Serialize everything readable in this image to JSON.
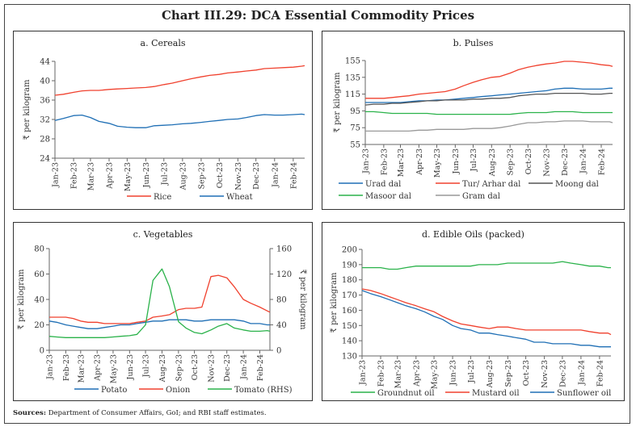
{
  "title": "Chart III.29: DCA Essential Commodity Prices",
  "sources_label": "Sources:",
  "sources_text": "Department of Consumer Affairs, GoI; and RBI staff estimates.",
  "chart_data": [
    {
      "type": "line",
      "title": "a. Cereals",
      "ylabel": "₹ per kilogram",
      "ylim": [
        24,
        44
      ],
      "yticks": [
        24,
        28,
        32,
        36,
        40,
        44
      ],
      "xlim": [
        "2023-01-01",
        "2024-02-20"
      ],
      "xticks": [
        "Jan-23",
        "Feb-23",
        "Mar-23",
        "Apr-23",
        "May-23",
        "Jun-23",
        "Jul-23",
        "Aug-23",
        "Sep-23",
        "Oct-23",
        "Nov-23",
        "Dec-23",
        "Jan-24",
        "Feb-24"
      ],
      "grid": false,
      "legend": "bottom",
      "x": [
        "2023-01-01",
        "2023-01-15",
        "2023-02-01",
        "2023-02-15",
        "2023-03-01",
        "2023-03-15",
        "2023-04-01",
        "2023-04-15",
        "2023-05-01",
        "2023-05-15",
        "2023-06-01",
        "2023-06-15",
        "2023-07-01",
        "2023-07-15",
        "2023-08-01",
        "2023-08-15",
        "2023-09-01",
        "2023-09-15",
        "2023-10-01",
        "2023-10-15",
        "2023-11-01",
        "2023-11-15",
        "2023-12-01",
        "2023-12-15",
        "2024-01-01",
        "2024-01-15",
        "2024-02-01",
        "2024-02-15",
        "2024-02-20"
      ],
      "series": [
        {
          "name": "Rice",
          "color": "#f0412e",
          "values": [
            37,
            37.2,
            37.6,
            37.9,
            38,
            38,
            38.2,
            38.3,
            38.4,
            38.5,
            38.6,
            38.8,
            39.2,
            39.5,
            40,
            40.4,
            40.8,
            41.1,
            41.3,
            41.6,
            41.8,
            42,
            42.2,
            42.5,
            42.6,
            42.7,
            42.8,
            43,
            43.1
          ]
        },
        {
          "name": "Wheat",
          "color": "#1f6fb5",
          "values": [
            31.8,
            32.2,
            32.8,
            32.9,
            32.4,
            31.6,
            31.2,
            30.6,
            30.4,
            30.3,
            30.3,
            30.7,
            30.8,
            30.9,
            31.1,
            31.2,
            31.4,
            31.6,
            31.8,
            32,
            32.1,
            32.4,
            32.8,
            33,
            32.9,
            32.9,
            33,
            33.1,
            33
          ]
        }
      ]
    },
    {
      "type": "line",
      "title": "b. Pulses",
      "ylabel": "₹ per kilogram",
      "ylim": [
        55,
        155
      ],
      "yticks": [
        55,
        75,
        95,
        115,
        135,
        155
      ],
      "xlim": [
        "2023-01-01",
        "2024-02-20"
      ],
      "xticks": [
        "Jan-23",
        "Feb-23",
        "Mar-23",
        "Apr-23",
        "May-23",
        "Jun-23",
        "Jul-23",
        "Aug-23",
        "Sep-23",
        "Oct-23",
        "Nov-23",
        "Dec-23",
        "Jan-24",
        "Feb-24"
      ],
      "grid": false,
      "legend": "bottom",
      "x": [
        "2023-01-01",
        "2023-01-15",
        "2023-02-01",
        "2023-02-15",
        "2023-03-01",
        "2023-03-15",
        "2023-04-01",
        "2023-04-15",
        "2023-05-01",
        "2023-05-15",
        "2023-06-01",
        "2023-06-15",
        "2023-07-01",
        "2023-07-15",
        "2023-08-01",
        "2023-08-15",
        "2023-09-01",
        "2023-09-15",
        "2023-10-01",
        "2023-10-15",
        "2023-11-01",
        "2023-11-15",
        "2023-12-01",
        "2023-12-15",
        "2024-01-01",
        "2024-01-15",
        "2024-02-01",
        "2024-02-15",
        "2024-02-20"
      ],
      "series": [
        {
          "name": "Urad dal",
          "color": "#1f6fb5",
          "values": [
            105,
            105,
            105,
            105,
            105,
            106,
            107,
            107,
            108,
            108,
            109,
            110,
            111,
            112,
            113,
            114,
            115,
            116,
            117,
            118,
            119,
            121,
            122,
            122,
            121,
            121,
            121,
            122,
            122
          ]
        },
        {
          "name": "Tur/ Arhar dal",
          "color": "#f0412e",
          "values": [
            110,
            110,
            110,
            111,
            112,
            113,
            115,
            116,
            117,
            118,
            121,
            125,
            129,
            132,
            135,
            136,
            140,
            144,
            147,
            149,
            151,
            152,
            154,
            154,
            153,
            152,
            150,
            149,
            148
          ]
        },
        {
          "name": "Moong dal",
          "color": "#555555",
          "values": [
            102,
            103,
            103,
            104,
            104,
            105,
            106,
            107,
            107,
            108,
            108,
            108,
            109,
            109,
            110,
            110,
            111,
            113,
            114,
            115,
            115,
            116,
            116,
            116,
            116,
            115,
            115,
            116,
            116
          ]
        },
        {
          "name": "Masoor dal",
          "color": "#2ab24a",
          "values": [
            94,
            94,
            93,
            92,
            92,
            92,
            92,
            92,
            91,
            91,
            91,
            91,
            91,
            91,
            91,
            91,
            91,
            92,
            93,
            93,
            93,
            94,
            94,
            94,
            93,
            93,
            93,
            93,
            93
          ]
        },
        {
          "name": "Gram dal",
          "color": "#999999",
          "values": [
            71,
            71,
            71,
            71,
            71,
            71,
            72,
            72,
            73,
            73,
            73,
            73,
            74,
            74,
            74,
            75,
            77,
            79,
            81,
            81,
            82,
            82,
            83,
            83,
            83,
            82,
            82,
            82,
            81
          ]
        }
      ]
    },
    {
      "type": "line",
      "title": "c. Vegetables",
      "ylabel": "₹ per kilogram",
      "ylabel_right": "₹ per kilogram",
      "ylim": [
        0,
        80
      ],
      "yticks": [
        0,
        20,
        40,
        60,
        80
      ],
      "ylim_right": [
        0,
        160
      ],
      "yticks_right": [
        0,
        40,
        80,
        120,
        160
      ],
      "xlim": [
        "2023-01-01",
        "2024-02-20"
      ],
      "xticks": [
        "Jan-23",
        "Feb-23",
        "Mar-23",
        "Apr-23",
        "May-23",
        "Jun-23",
        "Jul-23",
        "Aug-23",
        "Sep-23",
        "Oct-23",
        "Nov-23",
        "Dec-23",
        "Jan-24",
        "Feb-24"
      ],
      "grid": false,
      "legend": "bottom",
      "x": [
        "2023-01-01",
        "2023-01-15",
        "2023-02-01",
        "2023-02-15",
        "2023-03-01",
        "2023-03-15",
        "2023-04-01",
        "2023-04-15",
        "2023-05-01",
        "2023-05-15",
        "2023-06-01",
        "2023-06-15",
        "2023-07-01",
        "2023-07-15",
        "2023-08-01",
        "2023-08-15",
        "2023-09-01",
        "2023-09-15",
        "2023-10-01",
        "2023-10-15",
        "2023-11-01",
        "2023-11-15",
        "2023-12-01",
        "2023-12-15",
        "2024-01-01",
        "2024-01-15",
        "2024-02-01",
        "2024-02-15",
        "2024-02-20"
      ],
      "series": [
        {
          "name": "Potato",
          "color": "#1f6fb5",
          "axis": "left",
          "values": [
            23,
            22,
            20,
            19,
            18,
            17,
            17,
            18,
            19,
            20,
            20,
            21,
            22,
            23,
            23,
            24,
            24,
            24,
            23,
            23,
            24,
            24,
            24,
            24,
            23,
            21,
            21,
            20,
            20
          ]
        },
        {
          "name": "Onion",
          "color": "#f0412e",
          "axis": "left",
          "values": [
            26,
            26,
            26,
            25,
            23,
            22,
            22,
            21,
            21,
            21,
            21,
            22,
            23,
            26,
            27,
            28,
            32,
            33,
            33,
            34,
            58,
            59,
            57,
            50,
            40,
            37,
            34,
            31,
            30
          ]
        },
        {
          "name": "Tomato (RHS)",
          "color": "#2ab24a",
          "axis": "right",
          "values": [
            22,
            21,
            20,
            20,
            20,
            20,
            20,
            20,
            21,
            22,
            23,
            25,
            40,
            110,
            128,
            100,
            45,
            35,
            28,
            26,
            32,
            38,
            42,
            35,
            32,
            30,
            30,
            31,
            30
          ]
        }
      ]
    },
    {
      "type": "line",
      "title": "d. Edible Oils (packed)",
      "ylabel": "₹ per kilogram",
      "ylim": [
        130,
        200
      ],
      "yticks": [
        130,
        140,
        150,
        160,
        170,
        180,
        190,
        200
      ],
      "xlim": [
        "2023-01-01",
        "2024-02-20"
      ],
      "xticks": [
        "Jan-23",
        "Feb-23",
        "Mar-23",
        "Apr-23",
        "May-23",
        "Jun-23",
        "Jul-23",
        "Aug-23",
        "Sep-23",
        "Oct-23",
        "Nov-23",
        "Dec-23",
        "Jan-24",
        "Feb-24"
      ],
      "grid": false,
      "legend": "bottom",
      "x": [
        "2023-01-01",
        "2023-01-15",
        "2023-02-01",
        "2023-02-15",
        "2023-03-01",
        "2023-03-15",
        "2023-04-01",
        "2023-04-15",
        "2023-05-01",
        "2023-05-15",
        "2023-06-01",
        "2023-06-15",
        "2023-07-01",
        "2023-07-15",
        "2023-08-01",
        "2023-08-15",
        "2023-09-01",
        "2023-09-15",
        "2023-10-01",
        "2023-10-15",
        "2023-11-01",
        "2023-11-15",
        "2023-12-01",
        "2023-12-15",
        "2024-01-01",
        "2024-01-15",
        "2024-02-01",
        "2024-02-15",
        "2024-02-20"
      ],
      "series": [
        {
          "name": "Groundnut oil",
          "color": "#2ab24a",
          "values": [
            188,
            188,
            188,
            187,
            187,
            188,
            189,
            189,
            189,
            189,
            189,
            189,
            189,
            190,
            190,
            190,
            191,
            191,
            191,
            191,
            191,
            191,
            192,
            191,
            190,
            189,
            189,
            188,
            188
          ]
        },
        {
          "name": "Mustard oil",
          "color": "#f0412e",
          "values": [
            174,
            173,
            171,
            169,
            167,
            165,
            163,
            161,
            159,
            156,
            153,
            151,
            150,
            149,
            148,
            149,
            149,
            148,
            147,
            147,
            147,
            147,
            147,
            147,
            147,
            146,
            145,
            145,
            144
          ]
        },
        {
          "name": "Sunflower oil",
          "color": "#1f6fb5",
          "values": [
            173,
            171,
            169,
            167,
            165,
            163,
            161,
            159,
            156,
            154,
            150,
            148,
            147,
            145,
            145,
            144,
            143,
            142,
            141,
            139,
            139,
            138,
            138,
            138,
            137,
            137,
            136,
            136,
            136
          ]
        }
      ]
    }
  ]
}
